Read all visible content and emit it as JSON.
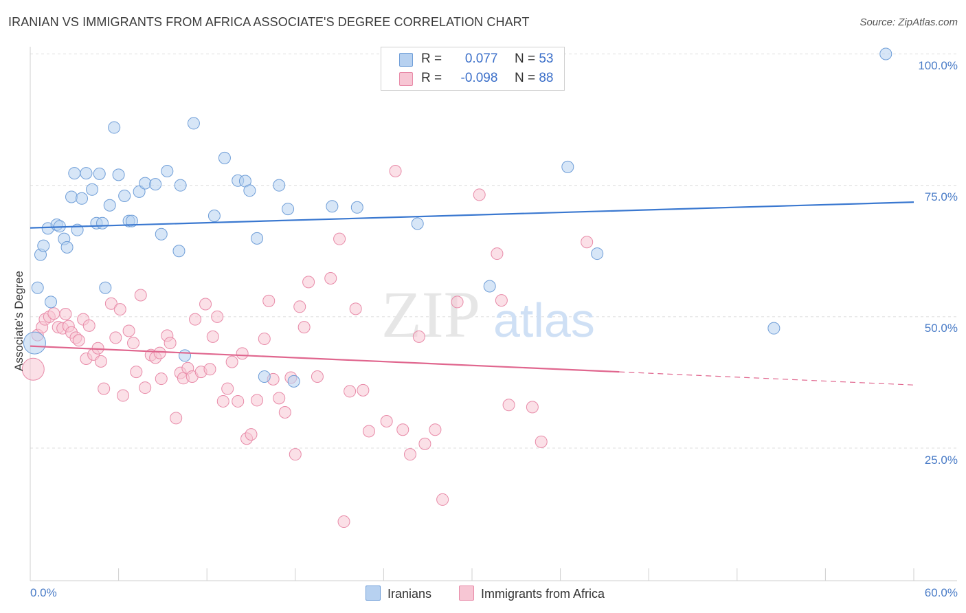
{
  "header": {
    "title": "IRANIAN VS IMMIGRANTS FROM AFRICA ASSOCIATE'S DEGREE CORRELATION CHART",
    "source": "Source: ZipAtlas.com"
  },
  "watermark": {
    "zip": "ZIP",
    "atlas": "atlas"
  },
  "legend": {
    "iranians": {
      "r_label": "R =",
      "r_value": "0.077",
      "n_label": "N =",
      "n_value": "53"
    },
    "africa": {
      "r_label": "R =",
      "r_value": "-0.098",
      "n_label": "N =",
      "n_value": "88"
    }
  },
  "colors": {
    "iranians_fill": "#b7d1f0",
    "iranians_stroke": "#6f9ed8",
    "iranians_line": "#3a78d0",
    "africa_fill": "#f7c6d4",
    "africa_stroke": "#e88aa8",
    "africa_line": "#e0668e",
    "axis_text": "#4a7cc7"
  },
  "chart_data": {
    "type": "scatter",
    "title": "IRANIAN VS IMMIGRANTS FROM AFRICA ASSOCIATE'S DEGREE CORRELATION CHART",
    "xlabel": "",
    "ylabel": "Associate's Degree",
    "xlim": [
      0,
      60
    ],
    "ylim": [
      0,
      100
    ],
    "x_tick_labels": [
      "0.0%",
      "60.0%"
    ],
    "y_tick_labels": [
      "100.0%",
      "75.0%",
      "50.0%",
      "25.0%"
    ],
    "y_ticks": [
      100,
      75,
      50,
      25
    ],
    "grid": true,
    "legend_position": "top-center",
    "bottom_legend": [
      "Iranians",
      "Immigrants from Africa"
    ],
    "series": [
      {
        "name": "Iranians",
        "r": 0.077,
        "n": 53,
        "trend": {
          "x": [
            0,
            60
          ],
          "y": [
            66.9,
            71.8
          ]
        },
        "points": [
          [
            0.5,
            55.5
          ],
          [
            0.7,
            61.8
          ],
          [
            0.9,
            63.5
          ],
          [
            1.2,
            66.8
          ],
          [
            1.4,
            52.8
          ],
          [
            1.8,
            67.5
          ],
          [
            2.0,
            67.2
          ],
          [
            2.3,
            64.8
          ],
          [
            2.5,
            63.2
          ],
          [
            2.8,
            72.8
          ],
          [
            3.0,
            77.3
          ],
          [
            3.2,
            66.5
          ],
          [
            3.5,
            72.5
          ],
          [
            3.8,
            77.3
          ],
          [
            4.2,
            74.2
          ],
          [
            4.5,
            67.8
          ],
          [
            4.7,
            77.2
          ],
          [
            4.9,
            67.8
          ],
          [
            5.1,
            55.5
          ],
          [
            5.4,
            71.2
          ],
          [
            5.7,
            86.0
          ],
          [
            6.0,
            77.0
          ],
          [
            6.4,
            73.0
          ],
          [
            6.7,
            68.2
          ],
          [
            6.9,
            68.2
          ],
          [
            7.4,
            73.8
          ],
          [
            7.8,
            75.4
          ],
          [
            8.5,
            75.2
          ],
          [
            8.9,
            65.7
          ],
          [
            9.3,
            77.7
          ],
          [
            10.1,
            62.5
          ],
          [
            10.2,
            75.0
          ],
          [
            10.5,
            42.6
          ],
          [
            11.1,
            86.8
          ],
          [
            12.5,
            69.2
          ],
          [
            13.2,
            80.2
          ],
          [
            14.1,
            75.9
          ],
          [
            14.6,
            75.8
          ],
          [
            14.9,
            74.0
          ],
          [
            15.4,
            64.9
          ],
          [
            15.9,
            38.6
          ],
          [
            16.9,
            75.0
          ],
          [
            17.5,
            70.5
          ],
          [
            17.9,
            37.7
          ],
          [
            20.5,
            71.0
          ],
          [
            22.2,
            70.8
          ],
          [
            26.3,
            67.7
          ],
          [
            31.2,
            55.8
          ],
          [
            36.5,
            78.5
          ],
          [
            38.5,
            62.0
          ],
          [
            50.5,
            47.8
          ],
          [
            58.1,
            100.0
          ],
          [
            0.3,
            45.0
          ]
        ],
        "sizes_note": "one large point at x≈0.3 (y≈45.0)"
      },
      {
        "name": "Immigrants from Africa",
        "r": -0.098,
        "n": 88,
        "trend": {
          "x": [
            0,
            40
          ],
          "y": [
            44.4,
            39.5
          ],
          "dashed_to": {
            "x": 60,
            "y": 37.0
          }
        },
        "points": [
          [
            0.2,
            40.0
          ],
          [
            0.5,
            46.5
          ],
          [
            0.8,
            48.0
          ],
          [
            1.0,
            49.5
          ],
          [
            1.3,
            50.0
          ],
          [
            1.6,
            50.6
          ],
          [
            1.9,
            48.0
          ],
          [
            2.2,
            47.8
          ],
          [
            2.4,
            50.5
          ],
          [
            2.6,
            48.2
          ],
          [
            2.8,
            47.0
          ],
          [
            3.1,
            46.0
          ],
          [
            3.3,
            45.5
          ],
          [
            3.6,
            49.5
          ],
          [
            3.8,
            42.0
          ],
          [
            4.0,
            48.3
          ],
          [
            4.3,
            42.8
          ],
          [
            4.6,
            44.0
          ],
          [
            4.8,
            41.5
          ],
          [
            5.0,
            36.3
          ],
          [
            5.5,
            52.5
          ],
          [
            5.8,
            46.0
          ],
          [
            6.1,
            51.4
          ],
          [
            6.3,
            35.0
          ],
          [
            6.7,
            47.3
          ],
          [
            7.0,
            45.0
          ],
          [
            7.2,
            39.5
          ],
          [
            7.5,
            54.1
          ],
          [
            7.8,
            36.5
          ],
          [
            8.2,
            42.7
          ],
          [
            8.5,
            42.2
          ],
          [
            8.8,
            43.1
          ],
          [
            8.9,
            38.2
          ],
          [
            9.3,
            46.4
          ],
          [
            9.5,
            45.0
          ],
          [
            9.9,
            30.7
          ],
          [
            10.2,
            39.3
          ],
          [
            10.4,
            38.3
          ],
          [
            10.7,
            40.2
          ],
          [
            11.0,
            38.6
          ],
          [
            11.2,
            49.5
          ],
          [
            11.6,
            39.5
          ],
          [
            11.9,
            52.4
          ],
          [
            12.2,
            40.0
          ],
          [
            12.4,
            46.2
          ],
          [
            12.7,
            50.0
          ],
          [
            13.1,
            33.9
          ],
          [
            13.4,
            36.3
          ],
          [
            13.7,
            41.4
          ],
          [
            14.1,
            33.9
          ],
          [
            14.4,
            43.0
          ],
          [
            14.7,
            26.8
          ],
          [
            15.0,
            27.6
          ],
          [
            15.4,
            34.1
          ],
          [
            15.9,
            45.8
          ],
          [
            16.2,
            53.0
          ],
          [
            16.5,
            38.1
          ],
          [
            16.9,
            34.5
          ],
          [
            17.3,
            31.8
          ],
          [
            17.7,
            38.4
          ],
          [
            18.0,
            23.8
          ],
          [
            18.3,
            51.9
          ],
          [
            18.6,
            48.0
          ],
          [
            18.9,
            56.6
          ],
          [
            19.5,
            38.6
          ],
          [
            20.4,
            57.3
          ],
          [
            21.0,
            64.8
          ],
          [
            21.3,
            11.0
          ],
          [
            21.7,
            35.8
          ],
          [
            22.1,
            51.5
          ],
          [
            22.6,
            36.0
          ],
          [
            23.0,
            28.2
          ],
          [
            24.2,
            30.1
          ],
          [
            24.8,
            77.7
          ],
          [
            25.3,
            28.5
          ],
          [
            25.8,
            23.8
          ],
          [
            26.4,
            46.2
          ],
          [
            26.8,
            25.8
          ],
          [
            27.5,
            28.5
          ],
          [
            28.0,
            15.2
          ],
          [
            29.0,
            52.8
          ],
          [
            30.5,
            73.2
          ],
          [
            31.7,
            62.0
          ],
          [
            32.0,
            53.1
          ],
          [
            32.5,
            33.2
          ],
          [
            34.1,
            32.8
          ],
          [
            34.7,
            26.2
          ],
          [
            37.8,
            64.2
          ]
        ]
      }
    ]
  }
}
